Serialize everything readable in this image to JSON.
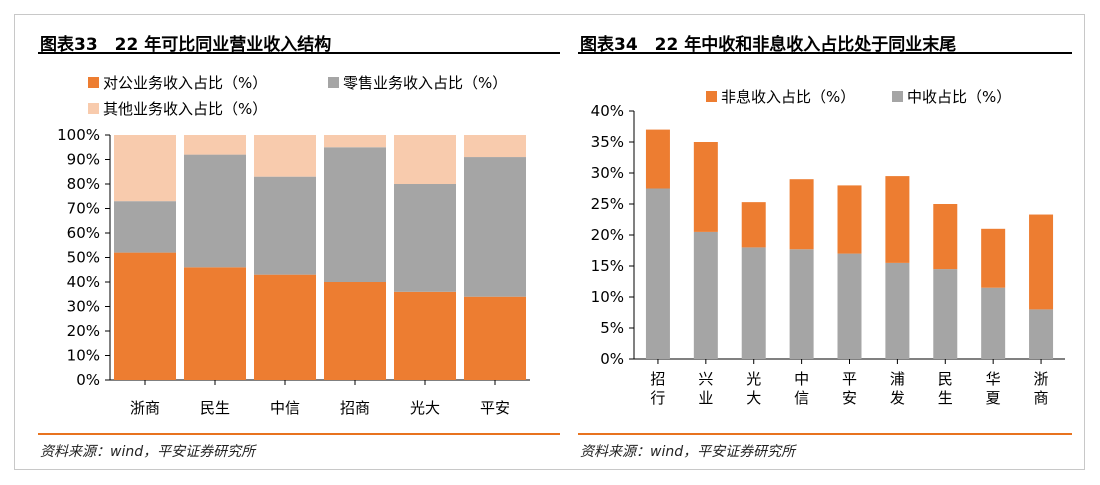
{
  "left": {
    "title": "图表33　22 年可比同业营业收入结构",
    "source": "资料来源：wind，平安证券研究所"
  },
  "right": {
    "title": "图表34　22 年中收和非息收入占比处于同业末尾",
    "source": "资料来源：wind，平安证券研究所"
  },
  "colors": {
    "orange": "#ED7D31",
    "gray": "#A5A5A5",
    "peach": "#F8CBAD"
  },
  "chart_data": [
    {
      "type": "bar",
      "stacked": true,
      "categories": [
        "浙商",
        "民生",
        "中信",
        "招商",
        "光大",
        "平安"
      ],
      "series": [
        {
          "name": "对公业务收入占比（%）",
          "color": "#ED7D31",
          "values": [
            52,
            46,
            43,
            40,
            36,
            34
          ]
        },
        {
          "name": "零售业务收入占比（%）",
          "color": "#A5A5A5",
          "values": [
            21,
            46,
            40,
            55,
            44,
            57
          ]
        },
        {
          "name": "其他业务收入占比（%）",
          "color": "#F8CBAD",
          "values": [
            27,
            8,
            17,
            5,
            20,
            9
          ]
        }
      ],
      "ylim": [
        0,
        100
      ],
      "yticks": [
        "0%",
        "10%",
        "20%",
        "30%",
        "40%",
        "50%",
        "60%",
        "70%",
        "80%",
        "90%",
        "100%"
      ],
      "legend": "top",
      "grid": false
    },
    {
      "type": "bar",
      "stacked": true,
      "categories": [
        "招行",
        "兴业",
        "光大",
        "中信",
        "平安",
        "浦发",
        "民生",
        "华夏",
        "浙商"
      ],
      "series": [
        {
          "name": "中收占比（%）",
          "color": "#A5A5A5",
          "values": [
            27.5,
            20.5,
            18,
            17.7,
            17,
            15.5,
            14.5,
            11.5,
            8
          ]
        },
        {
          "name": "非息收入占比（%）",
          "color": "#ED7D31",
          "values": [
            9.5,
            14.5,
            7.3,
            11.3,
            11,
            14,
            10.5,
            9.5,
            15.3
          ]
        }
      ],
      "legend_entries": [
        "非息收入占比（%）",
        "中收占比（%）"
      ],
      "ylim": [
        0,
        40
      ],
      "yticks": [
        "0%",
        "5%",
        "10%",
        "15%",
        "20%",
        "25%",
        "30%",
        "35%",
        "40%"
      ],
      "legend": "top",
      "grid": false
    }
  ]
}
